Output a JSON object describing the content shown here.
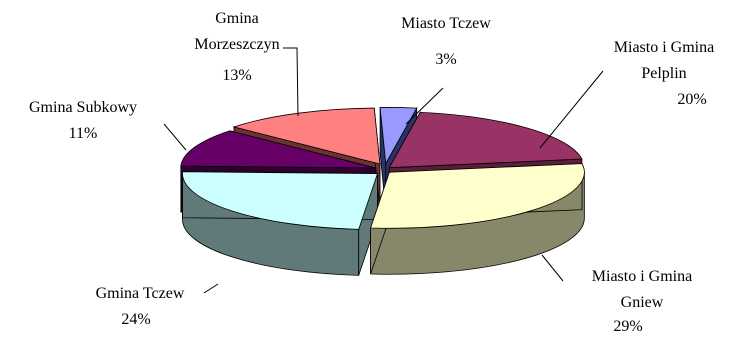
{
  "chart_data": {
    "type": "pie",
    "style": "3d-exploded",
    "grid": false,
    "legend": "none",
    "title": "",
    "slices": [
      {
        "name": "Miasto Tczew",
        "value": 3,
        "label": "3%",
        "top_color": "#9999ff",
        "side_color": "#2a3266"
      },
      {
        "name": "Miasto i Gmina Pelplin",
        "value": 20,
        "label": "20%",
        "top_color": "#993366",
        "side_color": "#5a1e3c"
      },
      {
        "name": "Miasto i Gmina Gniew",
        "value": 29,
        "label": "29%",
        "top_color": "#ffffcc",
        "side_color": "#87876a"
      },
      {
        "name": "Gmina Tczew",
        "value": 24,
        "label": "24%",
        "top_color": "#ccffff",
        "side_color": "#5f7a78"
      },
      {
        "name": "Gmina Subkowy",
        "value": 11,
        "label": "11%",
        "top_color": "#660066",
        "side_color": "#2e002e"
      },
      {
        "name": "Gmina Morzeszczyn",
        "value": 13,
        "label": "13%",
        "top_color": "#ff8080",
        "side_color": "#6e3330"
      }
    ]
  }
}
